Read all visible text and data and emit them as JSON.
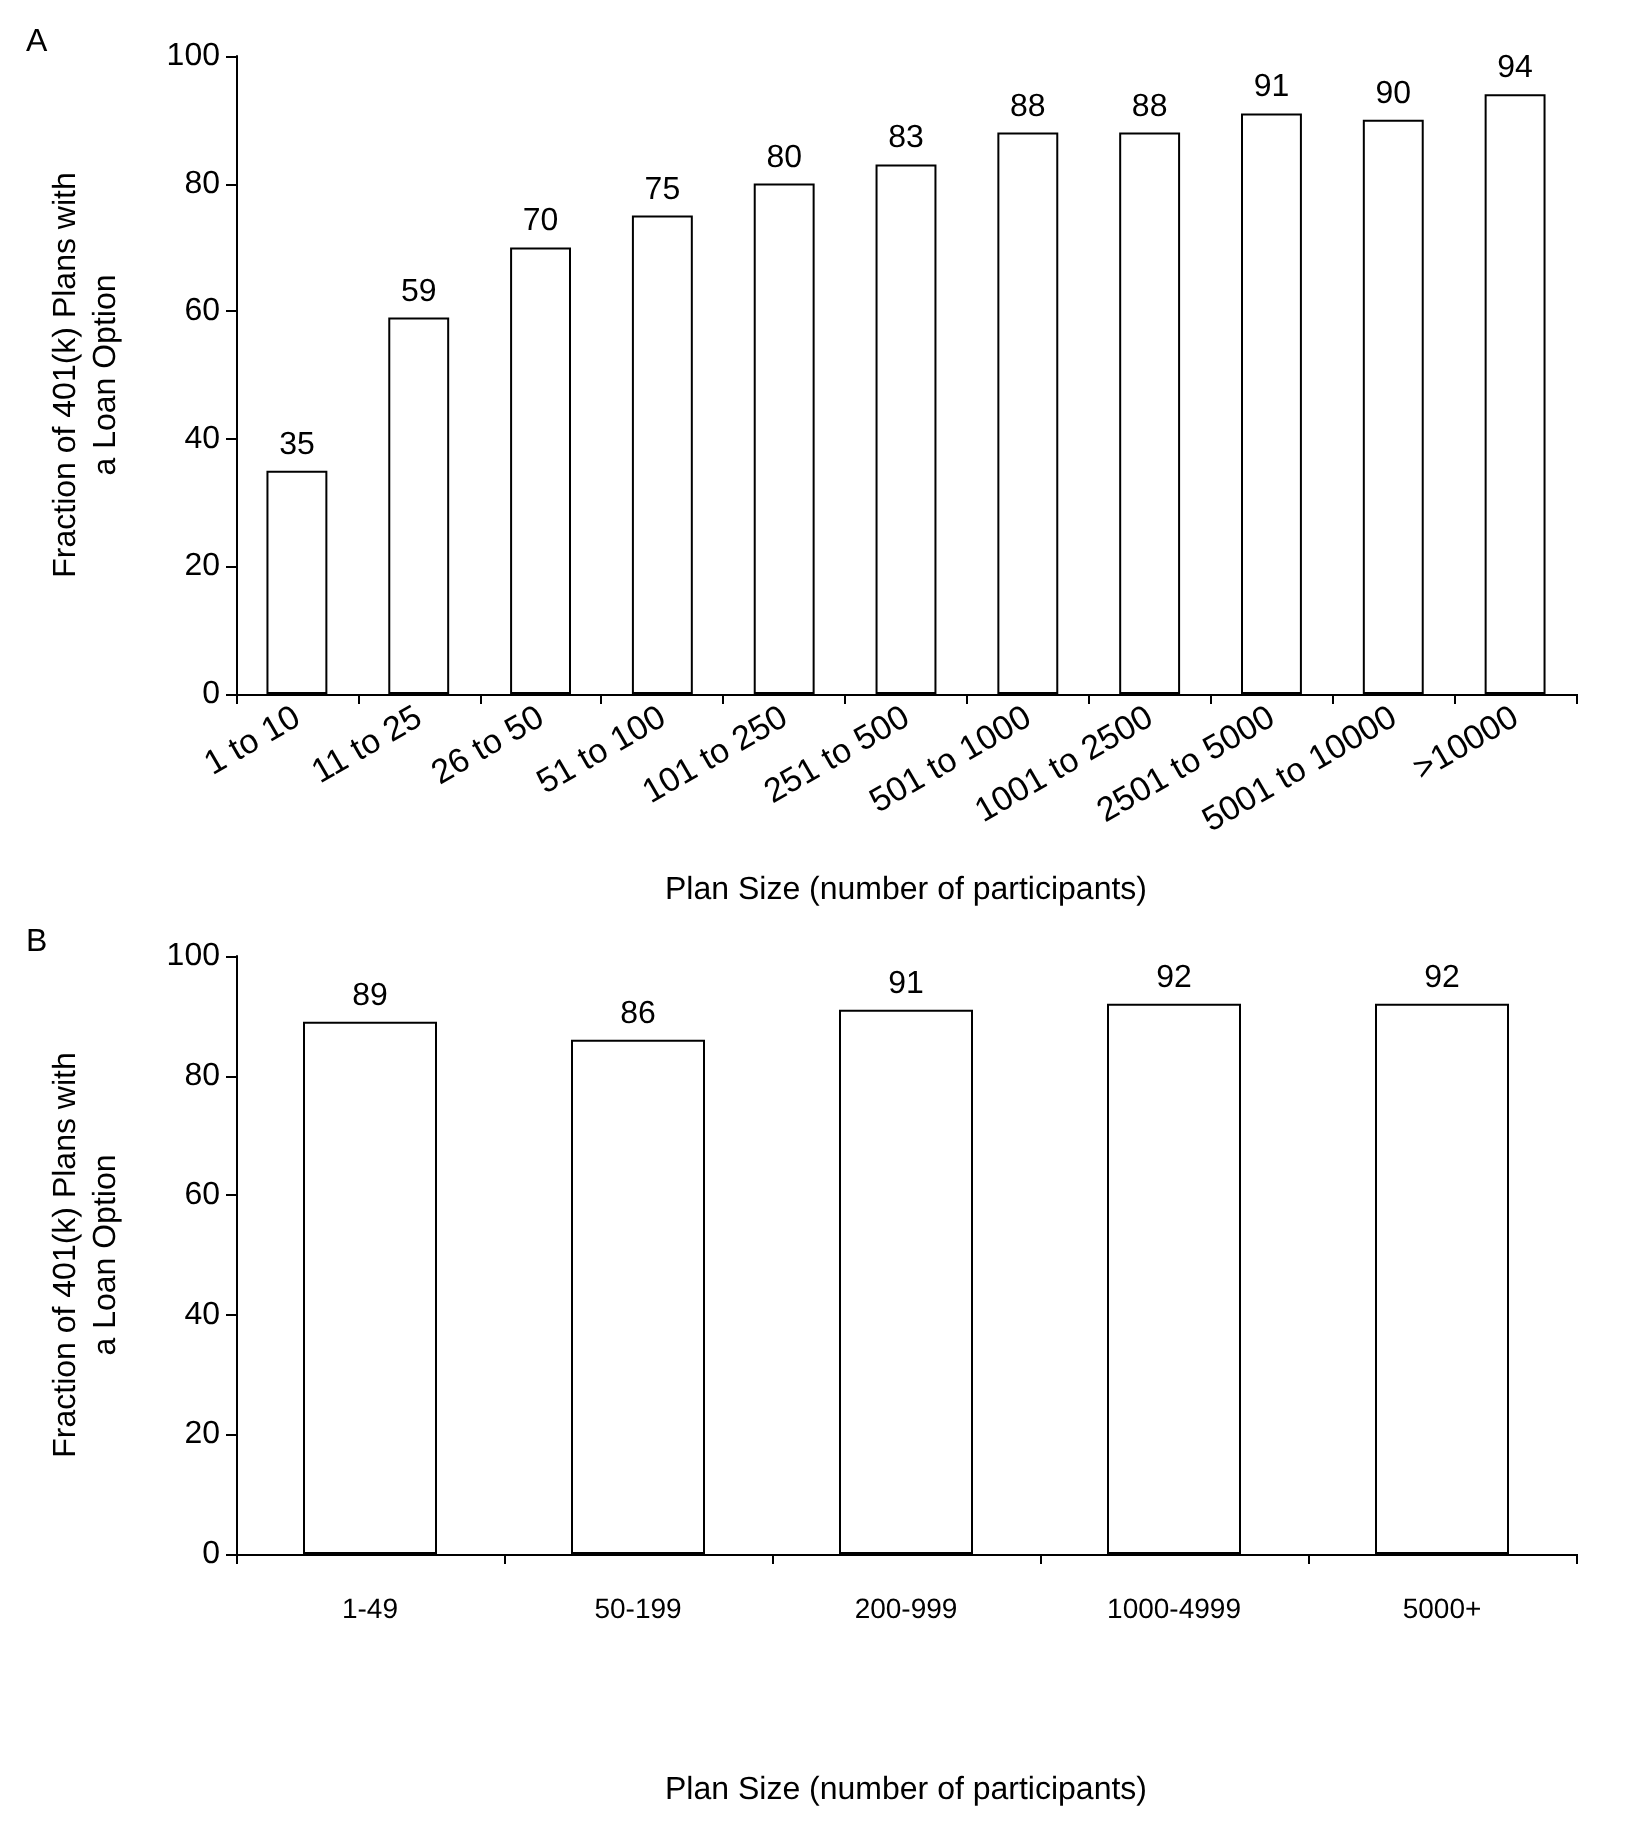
{
  "chart_data": [
    {
      "type": "bar",
      "title": "A",
      "xlabel": "Plan Size (number of participants)",
      "ylabel": "Fraction of 401(k) Plans with\na Loan Option",
      "categories": [
        "1 to 10",
        "11 to 25",
        "26 to 50",
        "51 to 100",
        "101 to 250",
        "251 to 500",
        "501 to 1000",
        "1001 to 2500",
        "2501 to 5000",
        "5001 to 10000",
        ">10000"
      ],
      "values": [
        35,
        59,
        70,
        75,
        80,
        83,
        88,
        88,
        91,
        90,
        94
      ],
      "color": "#ffffff",
      "ylim": [
        0,
        100
      ],
      "yticks": [
        0,
        20,
        40,
        60,
        80,
        100
      ],
      "grid": false,
      "data_labels": true
    },
    {
      "type": "bar",
      "title": "B",
      "xlabel": "Plan Size (number of participants)",
      "ylabel": "Fraction of 401(k) Plans with\na Loan Option",
      "categories": [
        "1-49",
        "50-199",
        "200-999",
        "1000-4999",
        "5000+"
      ],
      "values": [
        89,
        86,
        91,
        92,
        92
      ],
      "color": "#ffffff",
      "ylim": [
        0,
        100
      ],
      "yticks": [
        0,
        20,
        40,
        60,
        80,
        100
      ],
      "grid": false,
      "data_labels": true
    }
  ]
}
